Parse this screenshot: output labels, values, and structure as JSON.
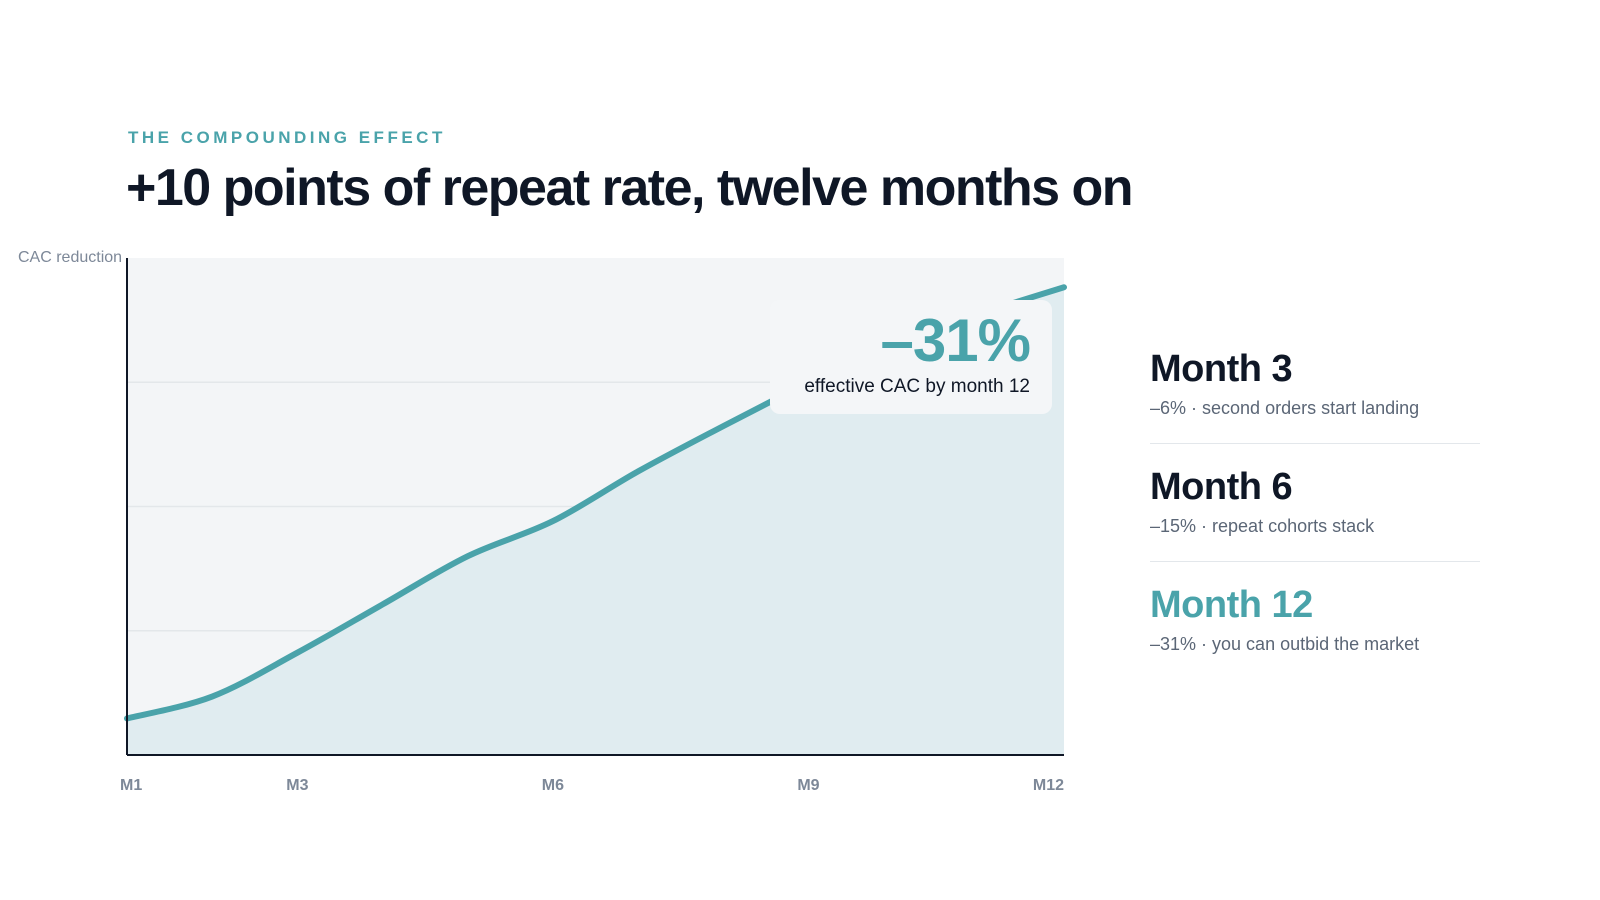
{
  "header": {
    "eyebrow": "THE COMPOUNDING EFFECT",
    "title": "+10 points of repeat rate, twelve months on"
  },
  "callout": {
    "value": "–31%",
    "label": "effective CAC by month 12"
  },
  "milestones": [
    {
      "title": "Month 3",
      "desc": "–6% · second orders start landing",
      "accent": false
    },
    {
      "title": "Month 6",
      "desc": "–15% · repeat cohorts stack",
      "accent": false
    },
    {
      "title": "Month 12",
      "desc": "–31% · you can outbid the market",
      "accent": true
    }
  ],
  "colors": {
    "accent": "#4aa3aa",
    "area_fill": "#e0ecf0",
    "plot_bg": "#f3f5f7",
    "grid": "#e3e7ea",
    "axis": "#0f1726",
    "tick_label": "#7d8898"
  },
  "chart_data": {
    "type": "area",
    "ylabel": "CAC reduction",
    "xlabel": "",
    "x_ticks": [
      "M1",
      "M3",
      "M6",
      "M9",
      "M12"
    ],
    "x": [
      1,
      2,
      3,
      4,
      5,
      6,
      7,
      8,
      9,
      10,
      11,
      12
    ],
    "xlim": [
      1,
      12
    ],
    "series": [
      {
        "values": [
          1.5,
          3,
          6,
          9.3,
          12.6,
          15,
          18.4,
          21.5,
          24.5,
          27.5,
          29.2,
          31
        ]
      }
    ],
    "ylim": [
      -1,
      33
    ],
    "grid": true,
    "y_grid_lines": 4
  }
}
